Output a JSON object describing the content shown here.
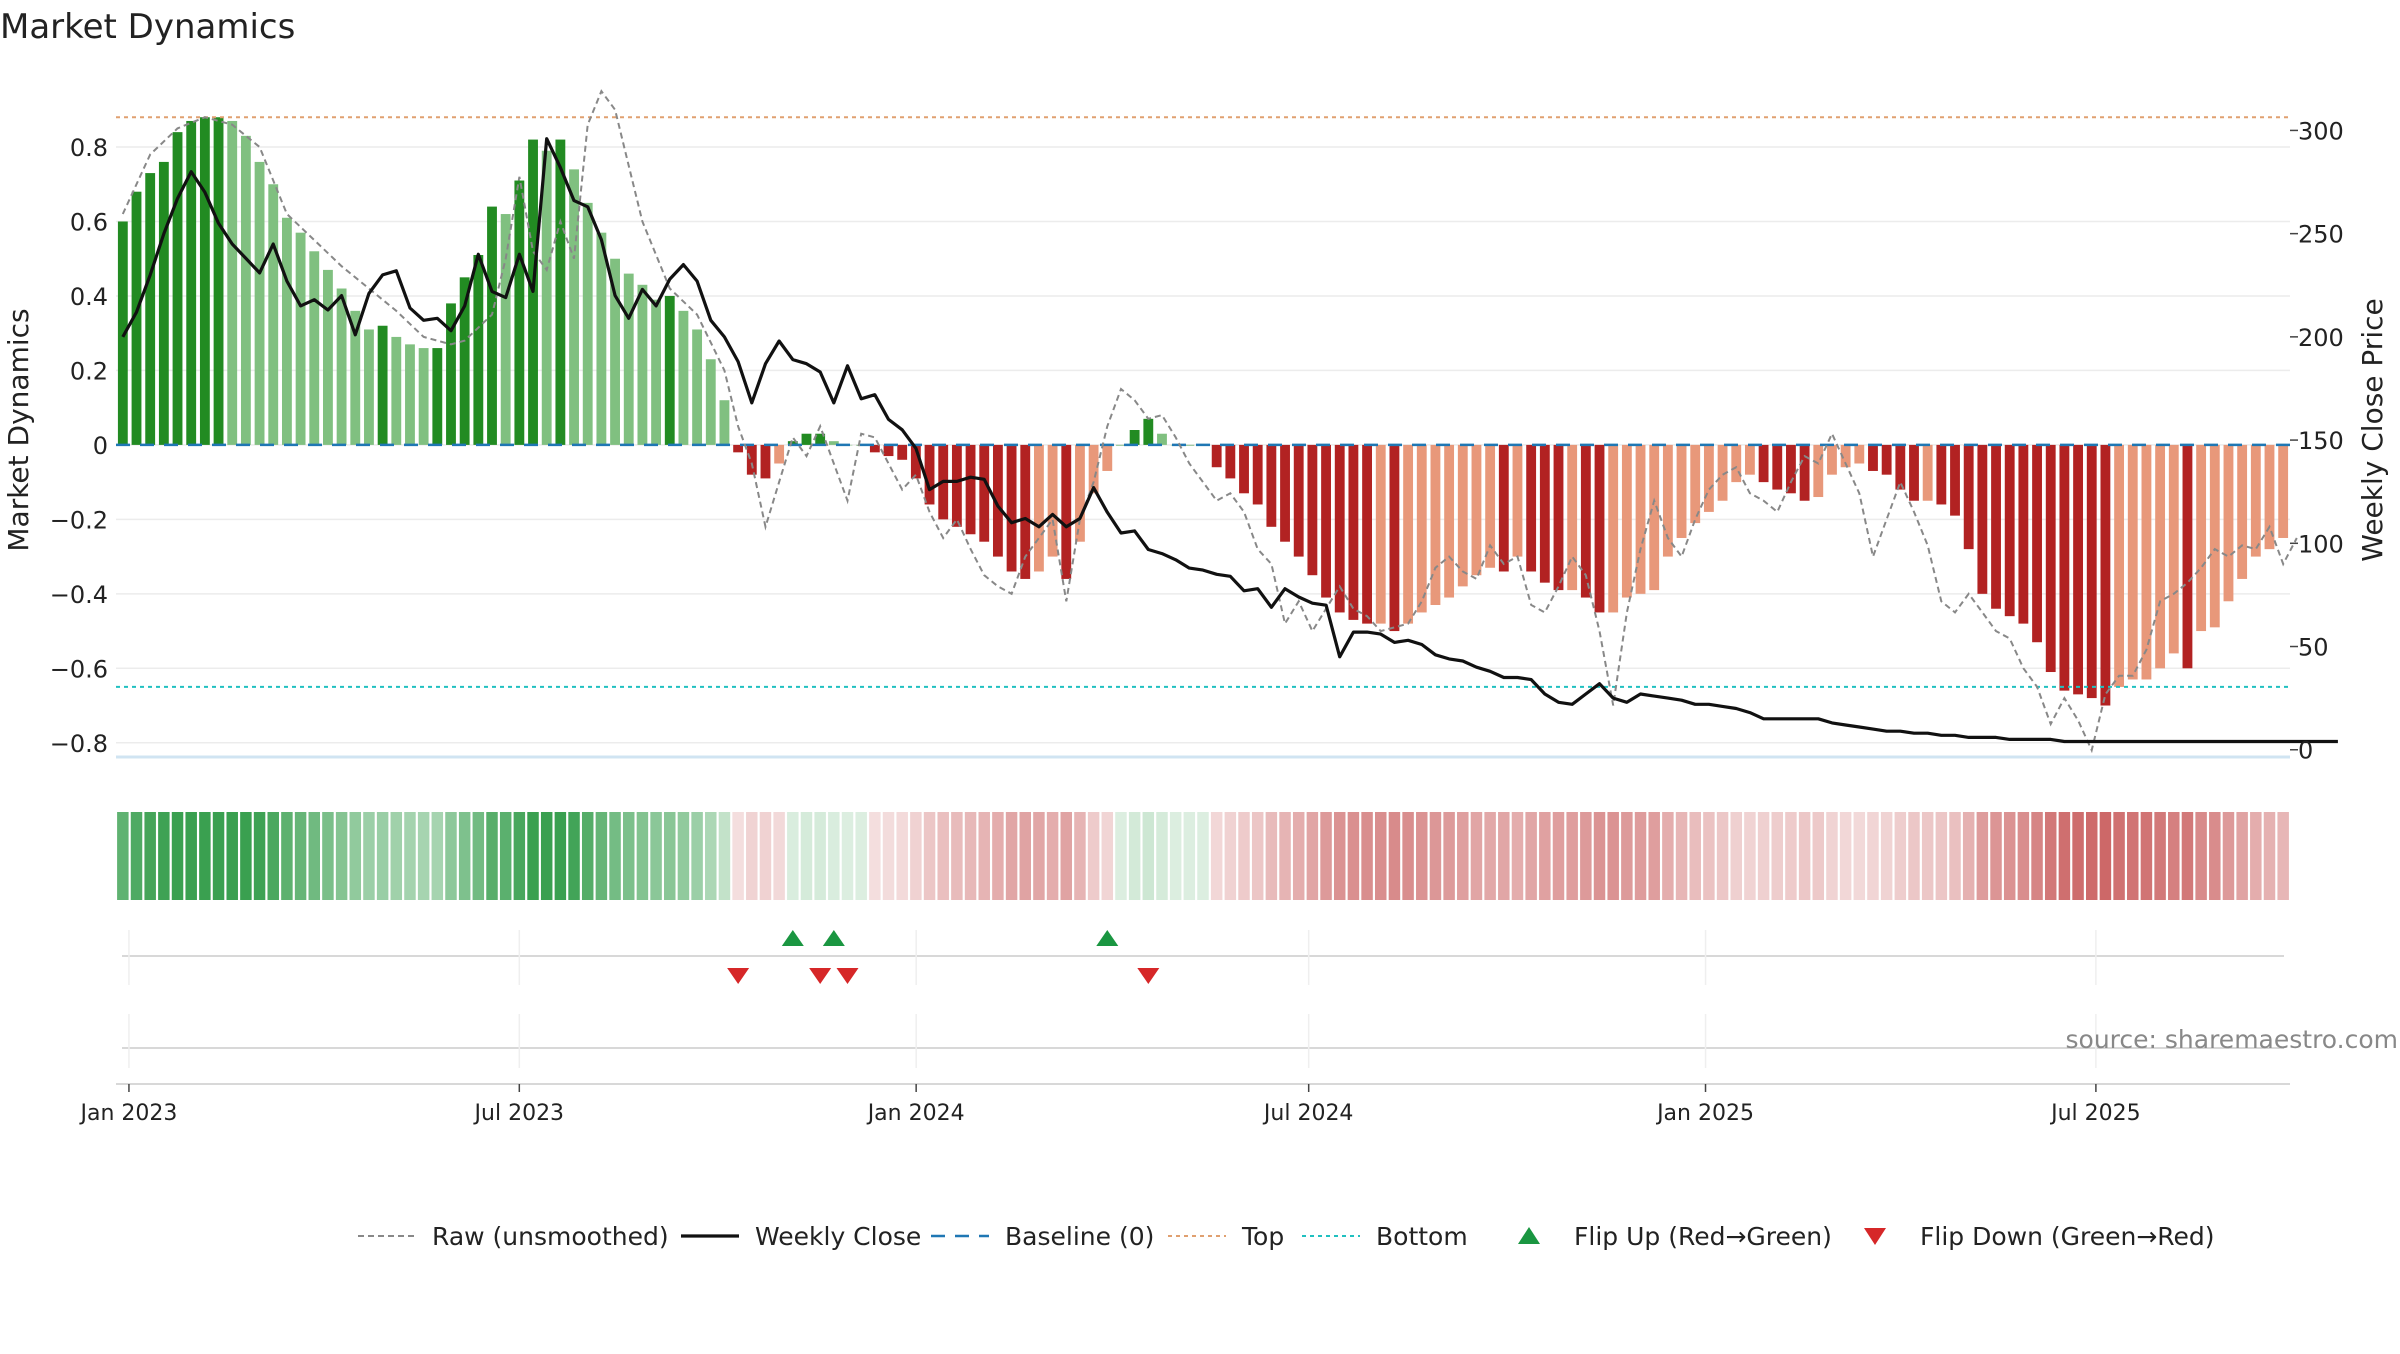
{
  "title": "Market Dynamics",
  "source": "source: sharemaestro.com",
  "colors": {
    "green_dark": "#228b22",
    "green_light": "#80c080",
    "red_dark": "#b22222",
    "red_light": "#e8987a",
    "price_line": "#111111",
    "raw_line": "#888888",
    "baseline": "#1f77b4",
    "top_line": "#e0a070",
    "bottom_line": "#20c0c0",
    "flip_up": "#1a9641",
    "flip_down": "#d62728",
    "source_text": "#888888"
  },
  "chart_data": {
    "type": "bar",
    "x_range": [
      "2022-12-26",
      "2025-09-29"
    ],
    "x_ticks": [
      "Jan 2023",
      "Jul 2023",
      "Jan 2024",
      "Jul 2024",
      "Jan 2025",
      "Jul 2025"
    ],
    "left_axis": {
      "label": "Market Dynamics",
      "ylim": [
        -0.9,
        0.98
      ],
      "ticks": [
        0.8,
        0.6,
        0.4,
        0.2,
        0,
        -0.2,
        -0.4,
        -0.6,
        -0.8
      ],
      "tick_labels": [
        "0.8",
        "0.6",
        "0.4",
        "0.2",
        "0",
        "−0.2",
        "−0.4",
        "−0.6",
        "−0.8"
      ]
    },
    "right_axis": {
      "label": "Weekly Close Price",
      "ylim": [
        -4,
        322
      ],
      "ticks": [
        300,
        250,
        200,
        150,
        100,
        50,
        0
      ]
    },
    "top_level": 0.88,
    "bottom_level": -0.65,
    "baseline": 0,
    "dynamics": [
      0.6,
      0.68,
      0.73,
      0.76,
      0.84,
      0.87,
      0.88,
      0.88,
      0.87,
      0.83,
      0.76,
      0.7,
      0.61,
      0.57,
      0.52,
      0.47,
      0.42,
      0.36,
      0.31,
      0.32,
      0.29,
      0.27,
      0.26,
      0.26,
      0.38,
      0.45,
      0.51,
      0.64,
      0.62,
      0.71,
      0.82,
      0.79,
      0.82,
      0.74,
      0.65,
      0.57,
      0.5,
      0.46,
      0.43,
      0.39,
      0.4,
      0.36,
      0.31,
      0.23,
      0.12,
      -0.02,
      -0.08,
      -0.09,
      -0.05,
      0.01,
      0.03,
      0.03,
      0.01,
      0,
      0,
      -0.02,
      -0.03,
      -0.04,
      -0.09,
      -0.16,
      -0.2,
      -0.22,
      -0.24,
      -0.26,
      -0.3,
      -0.34,
      -0.36,
      -0.34,
      -0.3,
      -0.36,
      -0.26,
      -0.13,
      -0.07,
      0,
      0.04,
      0.07,
      0.03,
      0,
      0,
      0,
      -0.06,
      -0.09,
      -0.13,
      -0.16,
      -0.22,
      -0.26,
      -0.3,
      -0.35,
      -0.41,
      -0.45,
      -0.47,
      -0.48,
      -0.48,
      -0.5,
      -0.48,
      -0.45,
      -0.43,
      -0.41,
      -0.38,
      -0.35,
      -0.33,
      -0.34,
      -0.3,
      -0.34,
      -0.37,
      -0.39,
      -0.39,
      -0.41,
      -0.45,
      -0.45,
      -0.41,
      -0.4,
      -0.39,
      -0.3,
      -0.25,
      -0.21,
      -0.18,
      -0.15,
      -0.1,
      -0.08,
      -0.1,
      -0.12,
      -0.13,
      -0.15,
      -0.14,
      -0.08,
      -0.06,
      -0.05,
      -0.07,
      -0.08,
      -0.12,
      -0.15,
      -0.15,
      -0.16,
      -0.19,
      -0.28,
      -0.4,
      -0.44,
      -0.46,
      -0.48,
      -0.53,
      -0.61,
      -0.66,
      -0.67,
      -0.68,
      -0.7,
      -0.65,
      -0.63,
      -0.63,
      -0.6,
      -0.56,
      -0.6,
      -0.5,
      -0.49,
      -0.42,
      -0.36,
      -0.3,
      -0.28,
      -0.25
    ],
    "price": [
      200,
      212,
      230,
      250,
      267,
      280,
      270,
      255,
      245,
      238,
      231,
      245,
      227,
      215,
      218,
      213,
      220,
      201,
      221,
      230,
      232,
      214,
      208,
      209,
      203,
      215,
      240,
      222,
      219,
      240,
      222,
      296,
      282,
      266,
      263,
      247,
      220,
      209,
      223,
      215,
      228,
      235,
      227,
      208,
      200,
      188,
      168,
      187,
      198,
      189,
      187,
      183,
      168,
      186,
      170,
      172,
      160,
      155,
      146,
      126,
      130,
      130,
      132,
      131,
      118,
      110,
      112,
      108,
      114,
      108,
      112,
      127,
      115,
      105,
      106,
      97,
      95,
      92,
      88,
      87,
      85,
      84,
      77,
      78,
      69,
      78,
      74,
      71,
      70,
      45,
      57,
      57,
      56,
      52,
      53,
      51,
      46,
      44,
      43,
      40,
      38,
      35,
      35,
      34,
      27,
      23,
      22,
      27,
      32,
      25,
      23,
      27,
      26,
      25,
      24,
      22,
      22,
      21,
      20,
      18,
      15,
      15,
      15,
      15,
      15,
      13,
      12,
      11,
      10,
      9,
      9,
      8,
      8,
      7,
      7,
      6,
      6,
      6,
      5,
      5,
      5,
      5,
      4,
      4,
      4,
      4,
      4,
      4,
      4,
      4,
      4,
      4,
      4,
      4,
      4,
      4,
      4,
      4,
      4,
      4,
      4,
      4,
      4
    ],
    "raw_points": [
      [
        0,
        0.62
      ],
      [
        2,
        0.78
      ],
      [
        4,
        0.85
      ],
      [
        6,
        0.88
      ],
      [
        8,
        0.86
      ],
      [
        10,
        0.8
      ],
      [
        12,
        0.62
      ],
      [
        14,
        0.55
      ],
      [
        16,
        0.48
      ],
      [
        18,
        0.42
      ],
      [
        20,
        0.36
      ],
      [
        22,
        0.29
      ],
      [
        24,
        0.27
      ],
      [
        25,
        0.28
      ],
      [
        27,
        0.35
      ],
      [
        28,
        0.5
      ],
      [
        29,
        0.72
      ],
      [
        30,
        0.52
      ],
      [
        31,
        0.47
      ],
      [
        32,
        0.6
      ],
      [
        33,
        0.5
      ],
      [
        34,
        0.86
      ],
      [
        35,
        0.95
      ],
      [
        36,
        0.9
      ],
      [
        37,
        0.75
      ],
      [
        38,
        0.6
      ],
      [
        40,
        0.42
      ],
      [
        42,
        0.35
      ],
      [
        44,
        0.2
      ],
      [
        45,
        0.05
      ],
      [
        46,
        -0.05
      ],
      [
        47,
        -0.22
      ],
      [
        48,
        -0.1
      ],
      [
        49,
        0.02
      ],
      [
        50,
        -0.03
      ],
      [
        51,
        0.05
      ],
      [
        52,
        -0.05
      ],
      [
        53,
        -0.15
      ],
      [
        54,
        0.03
      ],
      [
        55,
        0.02
      ],
      [
        56,
        -0.05
      ],
      [
        57,
        -0.12
      ],
      [
        58,
        -0.08
      ],
      [
        59,
        -0.18
      ],
      [
        60,
        -0.25
      ],
      [
        61,
        -0.2
      ],
      [
        62,
        -0.28
      ],
      [
        63,
        -0.35
      ],
      [
        64,
        -0.38
      ],
      [
        65,
        -0.4
      ],
      [
        66,
        -0.3
      ],
      [
        67,
        -0.25
      ],
      [
        68,
        -0.2
      ],
      [
        69,
        -0.42
      ],
      [
        70,
        -0.2
      ],
      [
        71,
        -0.1
      ],
      [
        72,
        0.05
      ],
      [
        73,
        0.15
      ],
      [
        74,
        0.12
      ],
      [
        75,
        0.07
      ],
      [
        76,
        0.08
      ],
      [
        77,
        0.02
      ],
      [
        78,
        -0.05
      ],
      [
        80,
        -0.15
      ],
      [
        81,
        -0.13
      ],
      [
        82,
        -0.18
      ],
      [
        83,
        -0.28
      ],
      [
        84,
        -0.32
      ],
      [
        85,
        -0.48
      ],
      [
        86,
        -0.42
      ],
      [
        87,
        -0.5
      ],
      [
        88,
        -0.44
      ],
      [
        89,
        -0.38
      ],
      [
        90,
        -0.44
      ],
      [
        91,
        -0.46
      ],
      [
        92,
        -0.5
      ],
      [
        94,
        -0.48
      ],
      [
        95,
        -0.42
      ],
      [
        96,
        -0.33
      ],
      [
        97,
        -0.3
      ],
      [
        98,
        -0.34
      ],
      [
        99,
        -0.36
      ],
      [
        100,
        -0.27
      ],
      [
        101,
        -0.32
      ],
      [
        102,
        -0.3
      ],
      [
        103,
        -0.43
      ],
      [
        104,
        -0.45
      ],
      [
        105,
        -0.38
      ],
      [
        106,
        -0.3
      ],
      [
        107,
        -0.35
      ],
      [
        108,
        -0.5
      ],
      [
        109,
        -0.7
      ],
      [
        110,
        -0.45
      ],
      [
        111,
        -0.28
      ],
      [
        112,
        -0.15
      ],
      [
        113,
        -0.25
      ],
      [
        114,
        -0.3
      ],
      [
        115,
        -0.2
      ],
      [
        116,
        -0.12
      ],
      [
        117,
        -0.08
      ],
      [
        118,
        -0.06
      ],
      [
        119,
        -0.13
      ],
      [
        120,
        -0.15
      ],
      [
        121,
        -0.18
      ],
      [
        122,
        -0.1
      ],
      [
        123,
        -0.03
      ],
      [
        124,
        -0.05
      ],
      [
        125,
        0.03
      ],
      [
        126,
        -0.05
      ],
      [
        127,
        -0.13
      ],
      [
        128,
        -0.3
      ],
      [
        129,
        -0.2
      ],
      [
        130,
        -0.1
      ],
      [
        131,
        -0.18
      ],
      [
        132,
        -0.27
      ],
      [
        133,
        -0.42
      ],
      [
        134,
        -0.45
      ],
      [
        135,
        -0.4
      ],
      [
        136,
        -0.45
      ],
      [
        137,
        -0.5
      ],
      [
        138,
        -0.52
      ],
      [
        139,
        -0.6
      ],
      [
        140,
        -0.65
      ],
      [
        141,
        -0.75
      ],
      [
        142,
        -0.68
      ],
      [
        143,
        -0.74
      ],
      [
        144,
        -0.82
      ],
      [
        145,
        -0.67
      ],
      [
        146,
        -0.62
      ],
      [
        147,
        -0.62
      ],
      [
        148,
        -0.55
      ],
      [
        149,
        -0.42
      ],
      [
        150,
        -0.4
      ],
      [
        151,
        -0.37
      ],
      [
        152,
        -0.33
      ],
      [
        153,
        -0.28
      ],
      [
        154,
        -0.3
      ],
      [
        155,
        -0.27
      ],
      [
        156,
        -0.28
      ],
      [
        157,
        -0.22
      ],
      [
        158,
        -0.32
      ],
      [
        159,
        -0.25
      ]
    ],
    "flip_up_weeks": [
      49,
      52,
      72
    ],
    "flip_down_weeks": [
      45,
      51,
      53,
      75
    ]
  },
  "legend": [
    {
      "label": "Raw (unsmoothed)",
      "icon": "dashed-gray-line"
    },
    {
      "label": "Weekly Close",
      "icon": "solid-black-line"
    },
    {
      "label": "Baseline (0)",
      "icon": "dashed-blue-line"
    },
    {
      "label": "Top",
      "icon": "dotted-orange-line"
    },
    {
      "label": "Bottom",
      "icon": "dotted-cyan-line"
    },
    {
      "label": "Flip Up (Red→Green)",
      "icon": "green-up-triangle"
    },
    {
      "label": "Flip Down (Green→Red)",
      "icon": "red-down-triangle"
    }
  ]
}
